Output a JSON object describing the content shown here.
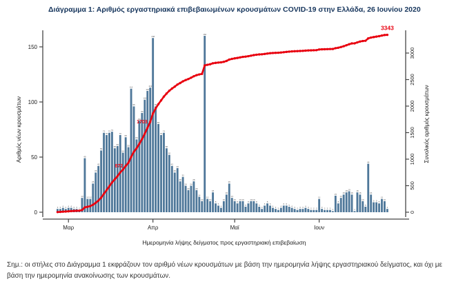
{
  "title": "Διάγραμμα 1: Αριθμός εργαστηριακά επιβεβαιωμένων κρουσμάτων COVID-19 στην Ελλάδα, 26 Ιουνίου 2020",
  "note": "Σημ.: οι στήλες στο Διάγραμμα 1 εκφράζουν τον αριθμό νέων κρουσμάτων με βάση την ημερομηνία λήψης εργαστηριακού δείγματος, και όχι με βάση την ημερομηνία ανακοίνωσης των κρουσμάτων.",
  "chart_data": {
    "type": "bar",
    "bar_series_name": "Αριθμός νέων κρουσμάτων",
    "line_series_name": "Συνολικός αριθμός κρουσμάτων",
    "daily_new_cases": [
      3,
      3,
      4,
      3,
      4,
      4,
      3,
      3,
      2,
      13,
      49,
      12,
      12,
      26,
      36,
      42,
      56,
      72,
      70,
      72,
      73,
      58,
      60,
      70,
      54,
      68,
      59,
      112,
      96,
      66,
      83,
      90,
      102,
      110,
      113,
      158,
      96,
      80,
      70,
      72,
      58,
      52,
      42,
      36,
      40,
      28,
      32,
      24,
      20,
      24,
      28,
      20,
      14,
      10,
      160,
      12,
      10,
      18,
      8,
      6,
      4,
      10,
      16,
      26,
      13,
      10,
      8,
      10,
      10,
      5,
      8,
      10,
      10,
      8,
      5,
      3,
      6,
      8,
      6,
      4,
      3,
      2,
      4,
      6,
      6,
      5,
      4,
      3,
      2,
      3,
      3,
      4,
      3,
      2,
      2,
      2,
      12,
      3,
      2,
      2,
      2,
      1,
      15,
      8,
      13,
      16,
      18,
      19,
      16,
      1,
      18,
      16,
      10,
      5,
      44,
      16,
      9,
      9,
      8,
      12,
      10,
      3
    ],
    "cumulative_final": 3343,
    "annotations": [
      {
        "label": "872",
        "day_index": 25
      },
      {
        "label": "1703",
        "day_index": 34
      },
      {
        "label": "3343",
        "day_index": 121
      }
    ],
    "y_left": {
      "label": "Αριθμός νέων κρουσμάτων",
      "ticks": [
        0,
        50,
        100,
        150
      ],
      "max": 168
    },
    "y_right": {
      "label": "Συνολικός αριθμός κρουσμάτων",
      "ticks": [
        0,
        500,
        1000,
        1500,
        2000,
        2500,
        3000
      ],
      "max": 3430
    },
    "x_axis": {
      "label": "Ημερομηνία λήψης δείγματος προς εργαστηριακή επιβεβαίωση",
      "ticks": [
        {
          "label": "Μαρ",
          "day_index": 4
        },
        {
          "label": "Απρ",
          "day_index": 35
        },
        {
          "label": "Μαϊ",
          "day_index": 65
        },
        {
          "label": "Ιουν",
          "day_index": 96
        }
      ]
    },
    "colors": {
      "bar": "#4e7799",
      "line": "#e8000f",
      "annotation": "#e8000f",
      "title": "#17365d",
      "axis": "#444444",
      "tick_text": "#1a1a1a",
      "bar_label": "#58595b"
    }
  }
}
